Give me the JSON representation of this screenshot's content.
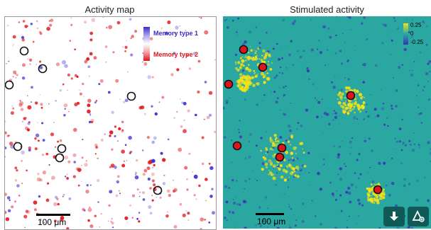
{
  "left_panel": {
    "title": "Activity map",
    "legend": {
      "label_top": "Memory type 1",
      "label_bottom": "Memory type 2",
      "color_top": "#3b2bd0",
      "color_bottom": "#e0141b"
    },
    "scalebar_label": "100 μm"
  },
  "right_panel": {
    "title": "Stimulated activity",
    "colorbar_ticks": [
      "0.25",
      "0",
      "-0.25"
    ],
    "scalebar_label": "100 μm",
    "background_color": "#2aa7a0",
    "highlight_color": "#f3e21a"
  },
  "toolbar": {
    "download_icon": "download-icon",
    "share_icon": "share-icon",
    "button_color": "#0f5a57"
  }
}
